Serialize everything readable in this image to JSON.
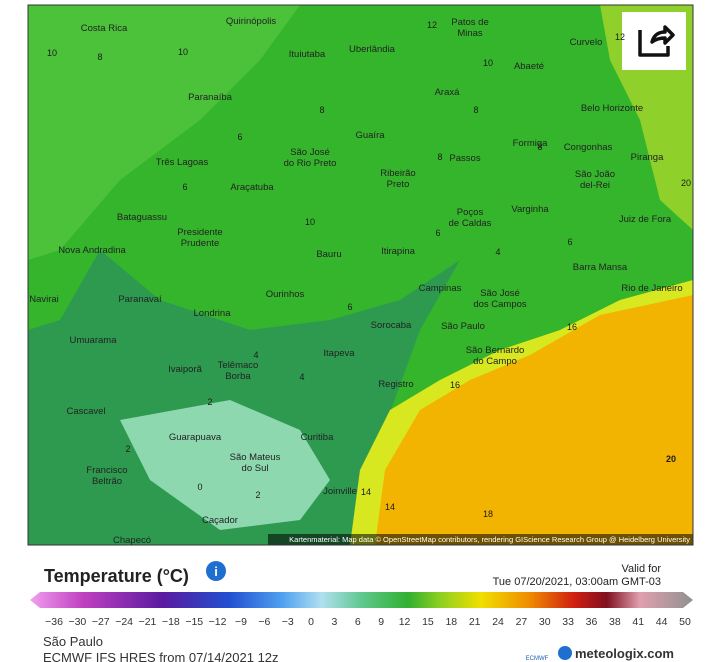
{
  "map": {
    "cities": [
      [
        "Costa Rica"
      ],
      [
        "Quirinópolis"
      ],
      [
        "Patos de",
        "Minas"
      ],
      [
        "Ituiutaba"
      ],
      [
        "Uberlândia"
      ],
      [
        "Curvelo"
      ],
      [
        "Abaeté"
      ],
      [
        "Paranaíba"
      ],
      [
        "Araxá"
      ],
      [
        "Belo Horizonte"
      ],
      [
        "Três Lagoas"
      ],
      [
        "São José",
        "do Rio Preto"
      ],
      [
        "Guaíra"
      ],
      [
        "Formiga"
      ],
      [
        "Congonhas"
      ],
      [
        "Passos"
      ],
      [
        "Piranga"
      ],
      [
        "Ribeirão",
        "Preto"
      ],
      [
        "São João",
        "del-Rei"
      ],
      [
        "Araçatuba"
      ],
      [
        "Bataguassu"
      ],
      [
        "Poços",
        "de Caldas"
      ],
      [
        "Varginha"
      ],
      [
        "Juiz de Fora"
      ],
      [
        "Presidente",
        "Prudente"
      ],
      [
        "Nova Andradina"
      ],
      [
        "Bauru"
      ],
      [
        "Itirapina"
      ],
      [
        "Barra Mansa"
      ],
      [
        "Campinas"
      ],
      [
        "São José",
        "dos Campos"
      ],
      [
        "Rio de Janeiro"
      ],
      [
        "Paranavaí"
      ],
      [
        "Ourinhos"
      ],
      [
        "Navirai"
      ],
      [
        "Londrina"
      ],
      [
        "Sorocaba"
      ],
      [
        "São Paulo"
      ],
      [
        "Umuarama"
      ],
      [
        "Itapeva"
      ],
      [
        "São Bernardo",
        "do Campo"
      ],
      [
        "Telêmaco",
        "Borba"
      ],
      [
        "Ivaiporã"
      ],
      [
        "Registro"
      ],
      [
        "Cascavel"
      ],
      [
        "Curitiba"
      ],
      [
        "Guarapuava"
      ],
      [
        "São Mateus",
        "do Sul"
      ],
      [
        "Francisco",
        "Beltrão"
      ],
      [
        "Joinville"
      ],
      [
        "Caçador"
      ],
      [
        "Chapecó"
      ]
    ],
    "contour_labels": [
      "10",
      "8",
      "12",
      "10",
      "10",
      "8",
      "10",
      "8",
      "6",
      "6",
      "8",
      "4",
      "6",
      "8",
      "6",
      "12",
      "16",
      "14",
      "16",
      "18",
      "20",
      "20",
      "4",
      "2",
      "2",
      "0",
      "2",
      "4",
      "6",
      "14"
    ],
    "attribution": "Kartenmaterial: Map data © OpenStreetMap contributors, rendering GIScience Research Group @ Heidelberg University"
  },
  "legend": {
    "title": "Temperature (°C)",
    "labels": [
      "−36",
      "−30",
      "−27",
      "−24",
      "−21",
      "−18",
      "−15",
      "−12",
      "−9",
      "−6",
      "−3",
      "0",
      "3",
      "6",
      "9",
      "12",
      "15",
      "18",
      "21",
      "24",
      "27",
      "30",
      "33",
      "36",
      "38",
      "41",
      "44",
      "50"
    ]
  },
  "valid": {
    "label": "Valid for",
    "time": "Tue 07/20/2021, 03:00am GMT-03"
  },
  "footer": {
    "location": "São Paulo",
    "model": "ECMWF IFS HRES from 07/14/2021 12z",
    "brand": "meteologix.com",
    "ecmwf": "ECMWF"
  }
}
